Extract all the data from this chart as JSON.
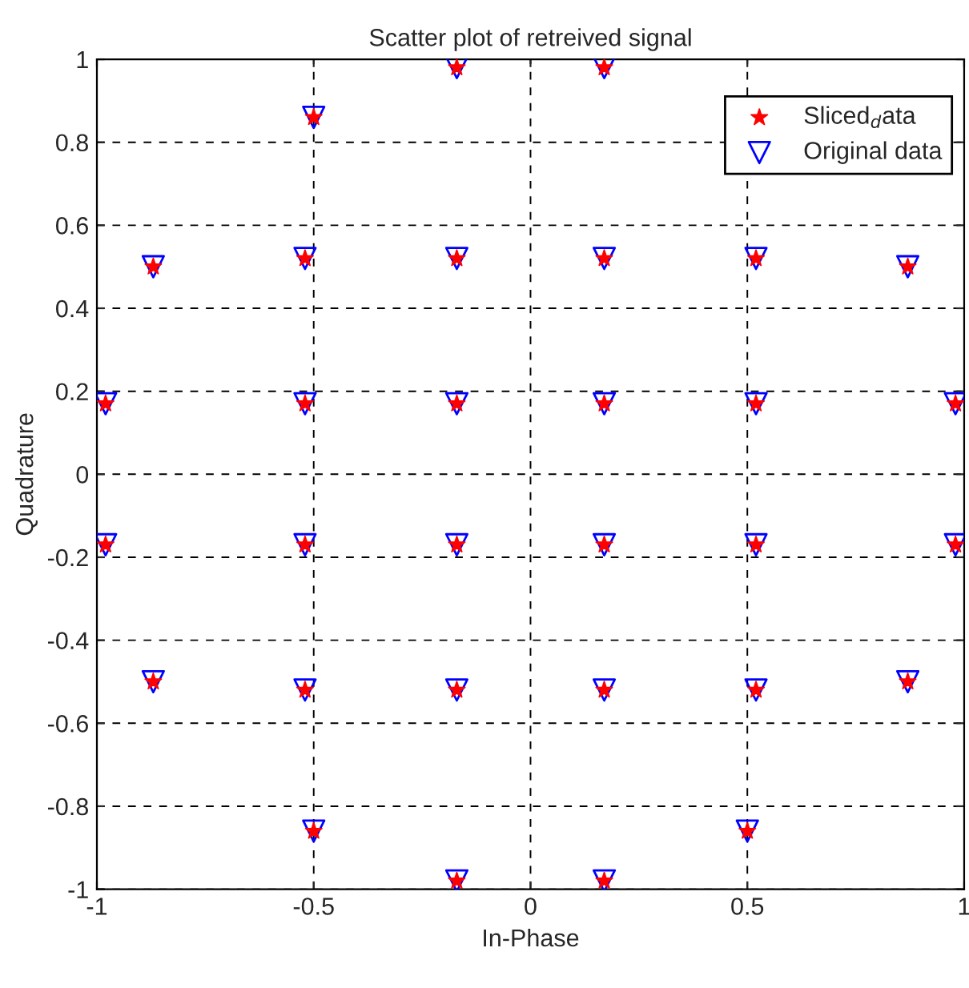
{
  "chart_data": {
    "type": "scatter",
    "title": "Scatter plot of retreived signal",
    "xlabel": "In-Phase",
    "ylabel": "Quadrature",
    "x": [
      -0.17,
      0.17,
      -0.5,
      -0.87,
      -0.52,
      -0.17,
      0.17,
      0.52,
      0.87,
      -0.98,
      -0.52,
      -0.17,
      0.17,
      0.52,
      0.98,
      -0.98,
      -0.52,
      -0.17,
      0.17,
      0.52,
      0.98,
      -0.87,
      -0.52,
      -0.17,
      0.17,
      0.52,
      0.87,
      -0.5,
      0.5,
      -0.17,
      0.17
    ],
    "series": [
      {
        "name": "Sliced$_{d}$ata",
        "color": "#ff0000",
        "marker": "star",
        "values": [
          0.98,
          0.98,
          0.86,
          0.5,
          0.52,
          0.52,
          0.52,
          0.52,
          0.5,
          0.17,
          0.17,
          0.17,
          0.17,
          0.17,
          0.17,
          -0.17,
          -0.17,
          -0.17,
          -0.17,
          -0.17,
          -0.17,
          -0.5,
          -0.52,
          -0.52,
          -0.52,
          -0.52,
          -0.5,
          -0.86,
          -0.86,
          -0.98,
          -0.98
        ]
      },
      {
        "name": "Original data",
        "color": "#0000ff",
        "marker": "triangle",
        "values": [
          0.98,
          0.98,
          0.86,
          0.5,
          0.52,
          0.52,
          0.52,
          0.52,
          0.5,
          0.17,
          0.17,
          0.17,
          0.17,
          0.17,
          0.17,
          -0.17,
          -0.17,
          -0.17,
          -0.17,
          -0.17,
          -0.17,
          -0.5,
          -0.52,
          -0.52,
          -0.52,
          -0.52,
          -0.5,
          -0.86,
          -0.86,
          -0.98,
          -0.98
        ]
      }
    ],
    "xlim": [
      -1,
      1
    ],
    "ylim": [
      -1,
      1
    ],
    "xticks": [
      -1,
      -0.5,
      0,
      0.5,
      1
    ],
    "yticks": [
      -1,
      -0.8,
      -0.6,
      -0.4,
      -0.2,
      0,
      0.2,
      0.4,
      0.6,
      0.8,
      1
    ],
    "grid": true,
    "legend": "top right"
  }
}
